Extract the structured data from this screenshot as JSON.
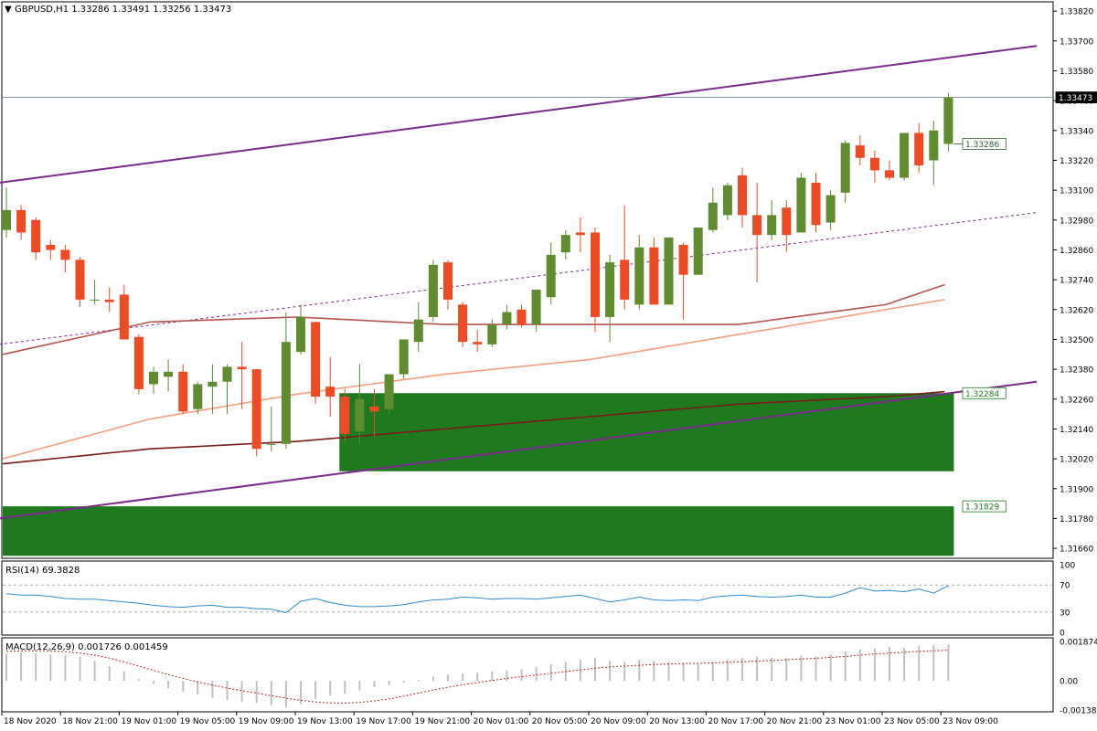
{
  "header": {
    "symbol_line": "GBPUSD,H1  1.33286 1.33491 1.33256 1.33473",
    "menu_glyph": "▼"
  },
  "colors": {
    "background": "#ffffff",
    "bull_candle": "#5e8c2e",
    "bear_candle": "#ee4b25",
    "channel_line": "#7b2a8c",
    "ma_fast": "#b5544e",
    "ma_slow": "#f4a07e",
    "ma_long": "#7a1a1a",
    "demand_zone": "#1f7a1f",
    "rsi_line": "#2e8bd6",
    "macd_hist": "#c0c0c0",
    "macd_signal": "#c0282a",
    "grid_text": "#000000"
  },
  "chart_data": [
    {
      "type": "candlestick",
      "title": "GBPUSD,H1",
      "ohlc_header": {
        "open": 1.33286,
        "high": 1.33491,
        "low": 1.33256,
        "close": 1.33473
      },
      "ylim": [
        1.3162,
        1.3385
      ],
      "y_ticks": [
        "1.33820",
        "1.33700",
        "1.33580",
        "1.33460",
        "1.33340",
        "1.33220",
        "1.33100",
        "1.32980",
        "1.32860",
        "1.32740",
        "1.32620",
        "1.32500",
        "1.32380",
        "1.32260",
        "1.32140",
        "1.32020",
        "1.31900",
        "1.31780",
        "1.31660"
      ],
      "price_labels": {
        "current": "1.33473",
        "last_open": "1.33286",
        "zone_top": "1.32284",
        "zone_low": "1.31829"
      },
      "x_labels": [
        "18 Nov 2020",
        "18 Nov 21:00",
        "19 Nov 01:00",
        "19 Nov 05:00",
        "19 Nov 09:00",
        "19 Nov 13:00",
        "19 Nov 17:00",
        "19 Nov 21:00",
        "20 Nov 01:00",
        "20 Nov 05:00",
        "20 Nov 09:00",
        "20 Nov 13:00",
        "20 Nov 17:00",
        "20 Nov 21:00",
        "23 Nov 01:00",
        "23 Nov 05:00",
        "23 Nov 09:00"
      ],
      "candles": [
        {
          "o": 1.3294,
          "h": 1.3311,
          "l": 1.3291,
          "c": 1.3302
        },
        {
          "o": 1.3302,
          "h": 1.3304,
          "l": 1.329,
          "c": 1.3293
        },
        {
          "o": 1.3298,
          "h": 1.3299,
          "l": 1.3282,
          "c": 1.3285
        },
        {
          "o": 1.3288,
          "h": 1.329,
          "l": 1.3282,
          "c": 1.3286
        },
        {
          "o": 1.3286,
          "h": 1.3288,
          "l": 1.3277,
          "c": 1.3282
        },
        {
          "o": 1.3282,
          "h": 1.3283,
          "l": 1.3263,
          "c": 1.3266
        },
        {
          "o": 1.3266,
          "h": 1.3274,
          "l": 1.3264,
          "c": 1.3266
        },
        {
          "o": 1.3266,
          "h": 1.3271,
          "l": 1.3261,
          "c": 1.3265
        },
        {
          "o": 1.3268,
          "h": 1.3272,
          "l": 1.325,
          "c": 1.325
        },
        {
          "o": 1.3251,
          "h": 1.3252,
          "l": 1.3228,
          "c": 1.323
        },
        {
          "o": 1.3232,
          "h": 1.3239,
          "l": 1.3228,
          "c": 1.3237
        },
        {
          "o": 1.3235,
          "h": 1.3242,
          "l": 1.3229,
          "c": 1.3237
        },
        {
          "o": 1.3237,
          "h": 1.324,
          "l": 1.322,
          "c": 1.3221
        },
        {
          "o": 1.3222,
          "h": 1.3233,
          "l": 1.322,
          "c": 1.3232
        },
        {
          "o": 1.3231,
          "h": 1.324,
          "l": 1.322,
          "c": 1.3233
        },
        {
          "o": 1.3233,
          "h": 1.324,
          "l": 1.322,
          "c": 1.3239
        },
        {
          "o": 1.3239,
          "h": 1.3249,
          "l": 1.3222,
          "c": 1.3238
        },
        {
          "o": 1.3238,
          "h": 1.3238,
          "l": 1.3203,
          "c": 1.3206
        },
        {
          "o": 1.3208,
          "h": 1.3223,
          "l": 1.3205,
          "c": 1.3208
        },
        {
          "o": 1.3208,
          "h": 1.3261,
          "l": 1.3206,
          "c": 1.3249
        },
        {
          "o": 1.3245,
          "h": 1.3264,
          "l": 1.3244,
          "c": 1.3259
        },
        {
          "o": 1.3257,
          "h": 1.3257,
          "l": 1.3224,
          "c": 1.3227
        },
        {
          "o": 1.3231,
          "h": 1.3243,
          "l": 1.3219,
          "c": 1.3227
        },
        {
          "o": 1.3227,
          "h": 1.323,
          "l": 1.3209,
          "c": 1.3212
        },
        {
          "o": 1.3213,
          "h": 1.324,
          "l": 1.3208,
          "c": 1.3226
        },
        {
          "o": 1.3223,
          "h": 1.323,
          "l": 1.3211,
          "c": 1.3221
        },
        {
          "o": 1.3222,
          "h": 1.3234,
          "l": 1.322,
          "c": 1.3236
        },
        {
          "o": 1.3236,
          "h": 1.325,
          "l": 1.3234,
          "c": 1.325
        },
        {
          "o": 1.3249,
          "h": 1.3265,
          "l": 1.3245,
          "c": 1.3258
        },
        {
          "o": 1.3259,
          "h": 1.3282,
          "l": 1.3257,
          "c": 1.328
        },
        {
          "o": 1.3281,
          "h": 1.3282,
          "l": 1.3262,
          "c": 1.3266
        },
        {
          "o": 1.3264,
          "h": 1.3265,
          "l": 1.3247,
          "c": 1.3249
        },
        {
          "o": 1.3249,
          "h": 1.3254,
          "l": 1.3245,
          "c": 1.3248
        },
        {
          "o": 1.3248,
          "h": 1.3258,
          "l": 1.3247,
          "c": 1.3256
        },
        {
          "o": 1.3256,
          "h": 1.3264,
          "l": 1.3254,
          "c": 1.3261
        },
        {
          "o": 1.3262,
          "h": 1.3264,
          "l": 1.3255,
          "c": 1.3256
        },
        {
          "o": 1.3256,
          "h": 1.327,
          "l": 1.3253,
          "c": 1.327
        },
        {
          "o": 1.3267,
          "h": 1.3289,
          "l": 1.3264,
          "c": 1.3284
        },
        {
          "o": 1.3285,
          "h": 1.3294,
          "l": 1.3282,
          "c": 1.3292
        },
        {
          "o": 1.3293,
          "h": 1.3299,
          "l": 1.3285,
          "c": 1.3292
        },
        {
          "o": 1.3293,
          "h": 1.3295,
          "l": 1.3253,
          "c": 1.3259
        },
        {
          "o": 1.3259,
          "h": 1.3284,
          "l": 1.3249,
          "c": 1.3281
        },
        {
          "o": 1.3282,
          "h": 1.3304,
          "l": 1.3262,
          "c": 1.3266
        },
        {
          "o": 1.3264,
          "h": 1.3292,
          "l": 1.3262,
          "c": 1.3287
        },
        {
          "o": 1.3287,
          "h": 1.3291,
          "l": 1.3264,
          "c": 1.3264
        },
        {
          "o": 1.3264,
          "h": 1.3291,
          "l": 1.3264,
          "c": 1.3291
        },
        {
          "o": 1.3288,
          "h": 1.3289,
          "l": 1.3258,
          "c": 1.3276
        },
        {
          "o": 1.3276,
          "h": 1.3295,
          "l": 1.3276,
          "c": 1.3295
        },
        {
          "o": 1.3294,
          "h": 1.3311,
          "l": 1.3293,
          "c": 1.3305
        },
        {
          "o": 1.33,
          "h": 1.3313,
          "l": 1.3298,
          "c": 1.3312
        },
        {
          "o": 1.3316,
          "h": 1.3319,
          "l": 1.3295,
          "c": 1.33
        },
        {
          "o": 1.33,
          "h": 1.3313,
          "l": 1.3273,
          "c": 1.3292
        },
        {
          "o": 1.3292,
          "h": 1.3306,
          "l": 1.329,
          "c": 1.33
        },
        {
          "o": 1.3303,
          "h": 1.3306,
          "l": 1.3285,
          "c": 1.3292
        },
        {
          "o": 1.3293,
          "h": 1.3317,
          "l": 1.3293,
          "c": 1.3315
        },
        {
          "o": 1.3313,
          "h": 1.3317,
          "l": 1.3293,
          "c": 1.3296
        },
        {
          "o": 1.3297,
          "h": 1.331,
          "l": 1.3294,
          "c": 1.3308
        },
        {
          "o": 1.3309,
          "h": 1.333,
          "l": 1.3305,
          "c": 1.3329
        },
        {
          "o": 1.3328,
          "h": 1.3332,
          "l": 1.332,
          "c": 1.3323
        },
        {
          "o": 1.3323,
          "h": 1.3326,
          "l": 1.3313,
          "c": 1.3318
        },
        {
          "o": 1.3318,
          "h": 1.3322,
          "l": 1.3314,
          "c": 1.3315
        },
        {
          "o": 1.3315,
          "h": 1.3333,
          "l": 1.3314,
          "c": 1.3333
        },
        {
          "o": 1.3333,
          "h": 1.3337,
          "l": 1.3317,
          "c": 1.332
        },
        {
          "o": 1.3322,
          "h": 1.3338,
          "l": 1.3312,
          "c": 1.3334
        },
        {
          "o": 1.33286,
          "h": 1.33491,
          "l": 1.33256,
          "c": 1.33473
        }
      ],
      "moving_averages": [
        {
          "name": "ma_fast",
          "points": [
            [
              0,
              1.3244
            ],
            [
              10,
              1.3257
            ],
            [
              20,
              1.3259
            ],
            [
              30,
              1.3256
            ],
            [
              40,
              1.3256
            ],
            [
              50,
              1.3256
            ],
            [
              60,
              1.3264
            ],
            [
              64,
              1.3272
            ]
          ]
        },
        {
          "name": "ma_slow",
          "points": [
            [
              0,
              1.3202
            ],
            [
              10,
              1.3218
            ],
            [
              20,
              1.3228
            ],
            [
              30,
              1.3236
            ],
            [
              40,
              1.3242
            ],
            [
              50,
              1.3252
            ],
            [
              60,
              1.3262
            ],
            [
              64,
              1.3266
            ]
          ]
        },
        {
          "name": "ma_long",
          "points": [
            [
              0,
              1.32
            ],
            [
              10,
              1.3206
            ],
            [
              20,
              1.3209
            ],
            [
              30,
              1.3214
            ],
            [
              40,
              1.3219
            ],
            [
              50,
              1.3224
            ],
            [
              60,
              1.3227
            ],
            [
              64,
              1.3229
            ]
          ]
        }
      ],
      "channel": {
        "upper": [
          [
            -0.5,
            1.3313
          ],
          [
            70,
            1.3368
          ]
        ],
        "middle_dashed": [
          [
            -0.5,
            1.3248
          ],
          [
            70,
            1.3301
          ]
        ],
        "lower": [
          [
            -0.5,
            1.3178
          ],
          [
            70,
            1.3233
          ]
        ]
      },
      "zones": [
        {
          "from": 23,
          "to": 64,
          "top": 1.32284,
          "bottom": 1.3197
        },
        {
          "from": -0.5,
          "to": 64,
          "top": 1.31829,
          "bottom": 1.3163
        }
      ],
      "horizontal_line": 1.33473
    },
    {
      "type": "line",
      "title": "RSI(14) 69.3828",
      "ylim": [
        0,
        100
      ],
      "y_ticks": [
        "100",
        "70",
        "30",
        "0"
      ],
      "levels": [
        70,
        30
      ],
      "values": [
        57,
        55,
        55,
        53,
        50,
        49,
        49,
        47,
        45,
        43,
        40,
        38,
        37,
        39,
        40,
        37,
        37,
        35,
        34,
        29,
        46,
        50,
        44,
        40,
        38,
        38,
        39,
        41,
        45,
        48,
        49,
        52,
        51,
        49,
        50,
        50,
        49,
        51,
        53,
        55,
        50,
        45,
        48,
        52,
        48,
        47,
        48,
        47,
        52,
        54,
        55,
        53,
        52,
        53,
        55,
        52,
        52,
        58,
        66,
        61,
        62,
        60,
        64,
        58,
        69
      ]
    },
    {
      "type": "bar",
      "title": "MACD(12,26,9) 0.001726 0.001459",
      "ylim": [
        -0.00138,
        0.00187
      ],
      "y_ticks": [
        "0.001874",
        "0.00",
        "-0.001386"
      ],
      "series": [
        {
          "name": "histogram",
          "values": [
            0.0013,
            0.00135,
            0.00132,
            0.00125,
            0.0012,
            0.00115,
            0.00095,
            0.0007,
            0.00045,
            0.0001,
            -0.00015,
            -0.00035,
            -0.0005,
            -0.00065,
            -0.0008,
            -0.0009,
            -0.00098,
            -0.00105,
            -0.00115,
            -0.00125,
            -0.0011,
            -0.00085,
            -0.0007,
            -0.0006,
            -0.00045,
            -0.0003,
            -0.0002,
            -8e-05,
            5e-05,
            0.0002,
            0.0003,
            0.00035,
            0.0004,
            0.00045,
            0.0005,
            0.00055,
            0.00065,
            0.0008,
            0.0009,
            0.001,
            0.0011,
            0.00095,
            0.0009,
            0.001,
            0.00095,
            0.0009,
            0.00085,
            0.0008,
            0.0009,
            0.001,
            0.0011,
            0.00115,
            0.0011,
            0.0011,
            0.0012,
            0.00115,
            0.00125,
            0.0014,
            0.0015,
            0.00155,
            0.0016,
            0.00158,
            0.00165,
            0.0017,
            0.001726
          ]
        },
        {
          "name": "signal",
          "values": [
            0.0014,
            0.00142,
            0.00143,
            0.00142,
            0.00138,
            0.00132,
            0.00122,
            0.00108,
            0.0009,
            0.0007,
            0.0005,
            0.0003,
            0.00012,
            -5e-05,
            -0.0002,
            -0.00034,
            -0.00046,
            -0.00058,
            -0.0007,
            -0.00082,
            -0.00092,
            -0.001,
            -0.00104,
            -0.00105,
            -0.00102,
            -0.00095,
            -0.00085,
            -0.00072,
            -0.00058,
            -0.00043,
            -0.0003,
            -0.00018,
            -8e-05,
            2e-05,
            0.00012,
            0.0002,
            0.00028,
            0.00036,
            0.00044,
            0.00052,
            0.0006,
            0.00066,
            0.0007,
            0.00074,
            0.00078,
            0.0008,
            0.00082,
            0.00083,
            0.00085,
            0.00088,
            0.00091,
            0.00094,
            0.00097,
            0.001,
            0.00104,
            0.00107,
            0.00111,
            0.00116,
            0.00122,
            0.00127,
            0.00132,
            0.00136,
            0.0014,
            0.00143,
            0.001459
          ]
        }
      ]
    }
  ]
}
